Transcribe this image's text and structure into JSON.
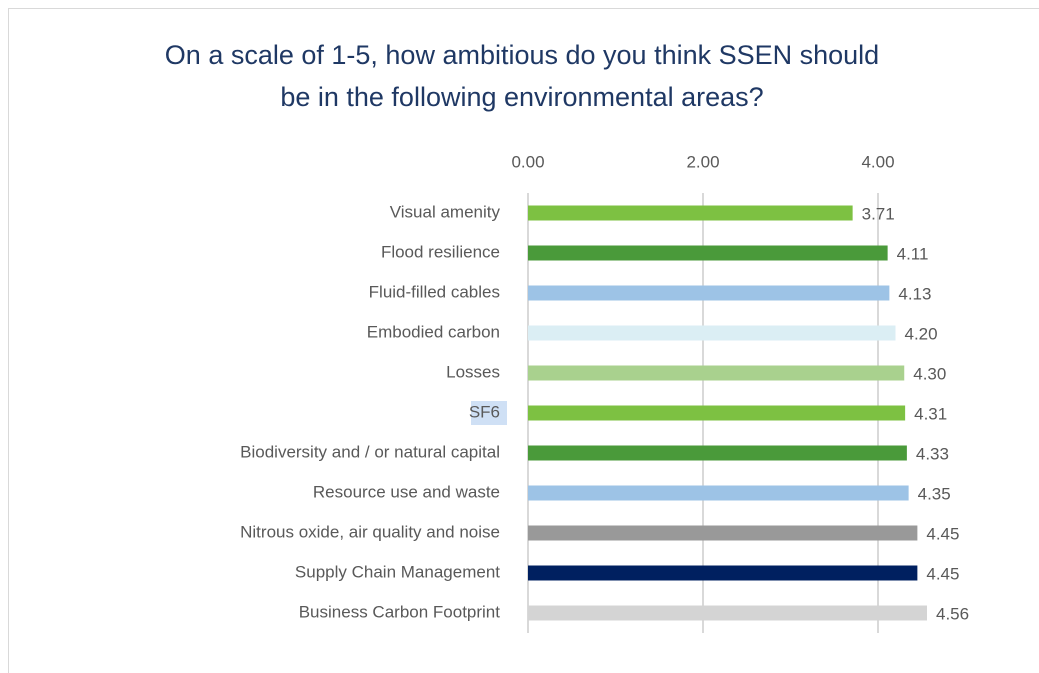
{
  "chart_data": {
    "type": "bar",
    "orientation": "horizontal",
    "title": "On a scale of 1-5, how ambitious do you think SSEN should be in the following environmental areas?",
    "categories": [
      "Visual amenity",
      "Flood resilience",
      "Fluid-filled cables",
      "Embodied carbon",
      "Losses",
      "SF6",
      "Biodiversity and / or natural capital",
      "Resource use and waste",
      "Nitrous oxide, air quality and noise",
      "Supply Chain Management",
      "Business Carbon Footprint"
    ],
    "values": [
      3.71,
      4.11,
      4.13,
      4.2,
      4.3,
      4.31,
      4.33,
      4.35,
      4.45,
      4.45,
      4.56
    ],
    "value_labels": [
      "3.71",
      "4.11",
      "4.13",
      "4.20",
      "4.30",
      "4.31",
      "4.33",
      "4.35",
      "4.45",
      "4.45",
      "4.56"
    ],
    "colors": [
      "#7dc142",
      "#4a9a3a",
      "#9dc3e6",
      "#dbeef4",
      "#a9d18e",
      "#7dc142",
      "#4a9a3a",
      "#9dc3e6",
      "#999999",
      "#002060",
      "#d4d4d4"
    ],
    "xlim": [
      0,
      5
    ],
    "xticks": [
      {
        "value": 0,
        "label": "0.00"
      },
      {
        "value": 2,
        "label": "2.00"
      },
      {
        "value": 4,
        "label": "4.00"
      }
    ],
    "grid": true
  }
}
